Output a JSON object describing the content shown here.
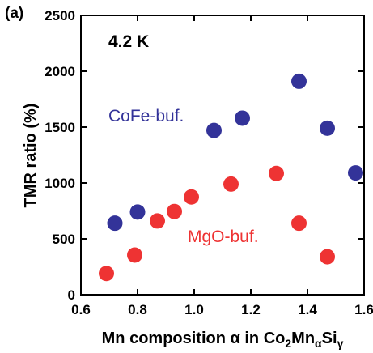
{
  "chart_data": {
    "type": "scatter",
    "panel_label": "(a)",
    "annotation": "4.2 K",
    "xlabel": "Mn composition α in Co₂MnαSiᵧ",
    "ylabel": "TMR ratio  (%)",
    "xlim": [
      0.6,
      1.6
    ],
    "ylim": [
      0,
      2500
    ],
    "xticks": [
      "0.6",
      "0.8",
      "1.0",
      "1.2",
      "1.4",
      "1.6"
    ],
    "yticks": [
      "0",
      "500",
      "1000",
      "1500",
      "2000",
      "2500"
    ],
    "grid": false,
    "series": [
      {
        "name": "CoFe-buf.",
        "color": "#333399",
        "points": [
          {
            "x": 0.72,
            "y": 640
          },
          {
            "x": 0.8,
            "y": 740
          },
          {
            "x": 1.07,
            "y": 1470
          },
          {
            "x": 1.17,
            "y": 1580
          },
          {
            "x": 1.37,
            "y": 1910
          },
          {
            "x": 1.47,
            "y": 1490
          },
          {
            "x": 1.57,
            "y": 1090
          }
        ]
      },
      {
        "name": "MgO-buf.",
        "color": "#ee3333",
        "points": [
          {
            "x": 0.69,
            "y": 190
          },
          {
            "x": 0.79,
            "y": 355
          },
          {
            "x": 0.87,
            "y": 660
          },
          {
            "x": 0.93,
            "y": 745
          },
          {
            "x": 0.99,
            "y": 875
          },
          {
            "x": 1.13,
            "y": 990
          },
          {
            "x": 1.29,
            "y": 1085
          },
          {
            "x": 1.37,
            "y": 640
          },
          {
            "x": 1.47,
            "y": 340
          }
        ]
      }
    ]
  }
}
